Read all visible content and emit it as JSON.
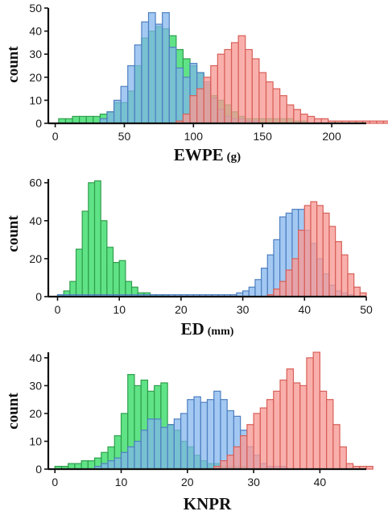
{
  "colors": {
    "green": {
      "fill": "#4fe07a",
      "stroke": "#2f9e4c",
      "opacity": 0.9
    },
    "blue": {
      "fill": "#7fb4ef",
      "stroke": "#4f7fc0",
      "opacity": 0.72
    },
    "red": {
      "fill": "#f79a95",
      "stroke": "#d85f58",
      "opacity": 0.78
    },
    "blue_dark": "#4a9bd8"
  },
  "chart_data": [
    {
      "type": "histogram",
      "ylabel": "count",
      "xlabel": "EWPE",
      "xunit": "(g)",
      "xlim": [
        -5,
        225
      ],
      "ylim": [
        0,
        50
      ],
      "xticks": [
        0,
        50,
        100,
        150,
        200
      ],
      "yticks": [
        0,
        10,
        20,
        30,
        40,
        50
      ],
      "bin_width": 5,
      "series": [
        {
          "color": "green",
          "bin_start": 2.5,
          "counts": [
            2,
            2,
            3,
            3,
            3,
            3,
            4,
            5,
            9,
            9,
            14,
            25,
            37,
            40,
            42,
            41,
            38,
            32,
            28,
            25,
            22,
            17,
            12,
            10,
            8,
            5,
            3,
            2,
            2,
            2,
            2,
            2,
            2,
            2,
            1,
            1
          ]
        },
        {
          "color": "blue",
          "bin_start": 32.5,
          "counts": [
            2,
            5,
            10,
            16,
            25,
            34,
            44,
            48,
            43,
            48,
            33,
            24,
            20,
            26,
            22,
            18,
            11,
            6,
            3,
            2,
            2,
            1,
            1
          ]
        },
        {
          "color": "red",
          "bin_start": 87.5,
          "counts": [
            1,
            4,
            12,
            15,
            20,
            25,
            30,
            32,
            35,
            38,
            32,
            28,
            22,
            18,
            15,
            12,
            8,
            6,
            4,
            3,
            2,
            2,
            1,
            1,
            1,
            1,
            1,
            1,
            1,
            1,
            1,
            1,
            1,
            1,
            1
          ]
        }
      ]
    },
    {
      "type": "histogram",
      "ylabel": "count",
      "xlabel": "ED",
      "xunit": "(mm)",
      "xlim": [
        -1.5,
        50
      ],
      "ylim": [
        0,
        62
      ],
      "xticks": [
        0,
        10,
        20,
        30,
        40,
        50
      ],
      "yticks": [
        0,
        20,
        40,
        60
      ],
      "bin_width": 1,
      "series": [
        {
          "color": "green",
          "bin_start": 0,
          "counts": [
            1,
            3,
            8,
            25,
            45,
            60,
            61,
            40,
            26,
            18,
            19,
            8,
            5,
            2,
            2,
            1,
            1,
            1
          ]
        },
        {
          "color": "blue",
          "bin_start": 0,
          "counts": [
            1,
            1,
            1,
            1,
            1,
            1,
            1,
            1,
            1,
            1,
            1,
            1,
            1,
            1,
            1,
            1,
            1,
            1,
            1,
            1,
            1,
            1,
            1,
            1,
            1,
            1,
            1,
            1,
            1,
            2,
            3,
            5,
            9,
            15,
            22,
            30,
            42,
            44,
            46,
            46,
            35,
            28,
            20,
            12,
            6,
            3,
            2,
            1
          ]
        },
        {
          "color": "red",
          "bin_start": 34,
          "counts": [
            1,
            4,
            8,
            14,
            20,
            35,
            48,
            50,
            48,
            44,
            37,
            29,
            22,
            12,
            5,
            2
          ]
        }
      ]
    },
    {
      "type": "histogram",
      "ylabel": "count",
      "xlabel": "KNPR",
      "xunit": "",
      "xlim": [
        -1,
        47
      ],
      "ylim": [
        0,
        42
      ],
      "xticks": [
        0,
        10,
        20,
        30,
        40
      ],
      "yticks": [
        0,
        10,
        20,
        30,
        40
      ],
      "bin_width": 1,
      "series": [
        {
          "color": "green",
          "bin_start": 0,
          "counts": [
            1,
            1,
            2,
            2,
            3,
            3,
            4,
            6,
            8,
            12,
            20,
            34,
            30,
            32,
            28,
            30,
            31,
            16,
            14,
            10,
            8,
            5,
            3,
            2,
            2,
            1,
            1,
            1,
            1
          ]
        },
        {
          "color": "blue",
          "bin_start": 6,
          "counts": [
            1,
            2,
            3,
            4,
            6,
            8,
            10,
            14,
            18,
            18,
            15,
            16,
            18,
            20,
            25,
            26,
            24,
            25,
            28,
            25,
            21,
            19,
            14,
            8,
            5,
            2,
            1,
            1,
            1
          ]
        },
        {
          "color": "red",
          "bin_start": 24,
          "counts": [
            1,
            3,
            5,
            8,
            12,
            16,
            20,
            22,
            25,
            28,
            32,
            36,
            31,
            30,
            40,
            42,
            28,
            25,
            16,
            8,
            2,
            1,
            1,
            1
          ]
        }
      ]
    }
  ]
}
